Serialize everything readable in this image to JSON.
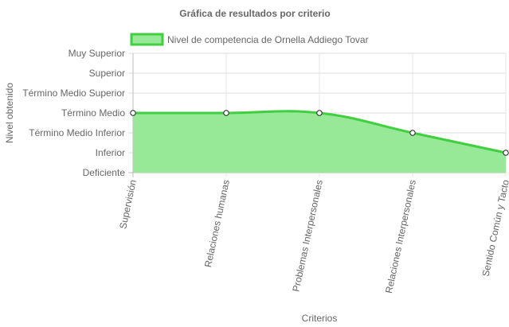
{
  "chart_data": {
    "type": "area",
    "title": "Gráfica de resultados por criterio",
    "xlabel": "Criterios",
    "ylabel": "Nivel obtenido",
    "legend_position": "top",
    "categories": [
      "Supervisión",
      "Relaciones humanas",
      "Problemas Interpersonales",
      "Relaciones Interpersonales",
      "Sentido Común y Tacto"
    ],
    "y_levels": [
      "Deficiente",
      "Inferior",
      "Término Medio Inferior",
      "Término Medio",
      "Término Medio Superior",
      "Superior",
      "Muy Superior"
    ],
    "ylim": [
      0,
      6
    ],
    "grid": true,
    "series": [
      {
        "name": "Nivel de competencia de Ornella Addiego Tovar",
        "values": [
          3,
          3,
          3,
          2,
          1
        ],
        "color": "#3fcf3f",
        "fill": "#97e897"
      }
    ]
  }
}
